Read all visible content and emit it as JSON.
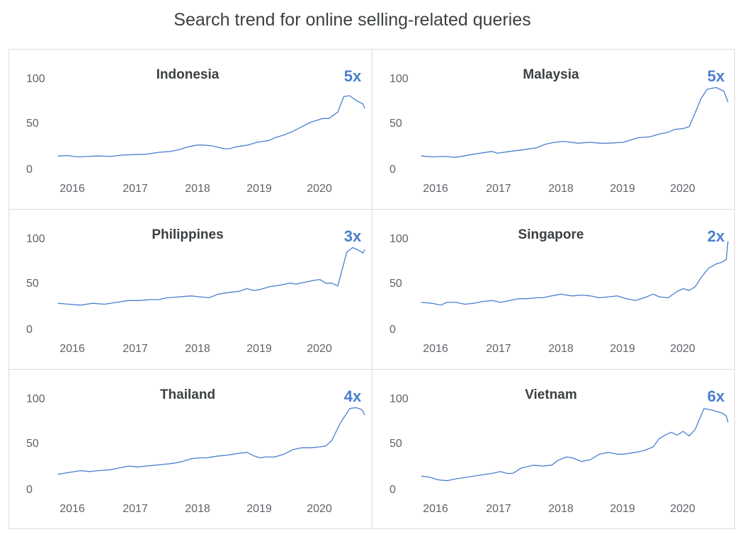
{
  "title": "Search trend for online selling-related queries",
  "colors": {
    "line": "#4a7fcf",
    "multiplier": "#4a7fcf",
    "grid_border": "#dadce0"
  },
  "chart_data": [
    {
      "type": "line",
      "title": "Indonesia",
      "multiplier": "5x",
      "x_ticks": [
        "2016",
        "2017",
        "2018",
        "2019",
        "2020"
      ],
      "y_ticks": [
        "100",
        "50",
        "0"
      ],
      "ylim": [
        0,
        100
      ],
      "xlim": [
        2015.6,
        2020.75
      ],
      "grid": false,
      "series": [
        {
          "x": [
            2015.62,
            2015.78,
            2015.95,
            2016.1,
            2016.3,
            2016.5,
            2016.7,
            2016.9,
            2017.1,
            2017.3,
            2017.5,
            2017.65,
            2017.8,
            2017.95,
            2018.05,
            2018.2,
            2018.4,
            2018.5,
            2018.6,
            2018.8,
            2018.95,
            2019.05,
            2019.15,
            2019.25,
            2019.4,
            2019.55,
            2019.7,
            2019.85,
            2019.95,
            2020.05,
            2020.15,
            2020.3,
            2020.4,
            2020.5,
            2020.6,
            2020.72,
            2020.75
          ],
          "values": [
            13,
            13.5,
            12,
            12.5,
            13,
            12.5,
            14,
            14.5,
            15,
            17,
            18,
            20,
            23,
            25,
            25,
            24,
            21,
            21,
            23,
            25,
            28,
            29,
            30,
            33,
            36,
            40,
            45,
            50,
            52,
            54,
            54,
            61,
            78,
            79,
            74,
            70,
            65
          ]
        }
      ]
    },
    {
      "type": "line",
      "title": "Malaysia",
      "multiplier": "5x",
      "x_ticks": [
        "2016",
        "2017",
        "2018",
        "2019",
        "2020"
      ],
      "y_ticks": [
        "100",
        "50",
        "0"
      ],
      "ylim": [
        0,
        100
      ],
      "xlim": [
        2015.6,
        2020.75
      ],
      "grid": false,
      "series": [
        {
          "x": [
            2015.62,
            2015.8,
            2016.0,
            2016.2,
            2016.5,
            2016.8,
            2016.9,
            2017.1,
            2017.35,
            2017.55,
            2017.7,
            2017.85,
            2018.0,
            2018.25,
            2018.45,
            2018.6,
            2018.75,
            2019.0,
            2019.1,
            2019.25,
            2019.45,
            2019.6,
            2019.75,
            2019.85,
            2020.0,
            2020.1,
            2020.2,
            2020.3,
            2020.4,
            2020.55,
            2020.68,
            2020.75
          ],
          "values": [
            13,
            12,
            12.5,
            11.5,
            15,
            18,
            16,
            18,
            20,
            22,
            26,
            28,
            29,
            27,
            28,
            27,
            27,
            28,
            30,
            33,
            34,
            37,
            39,
            42,
            43,
            45,
            60,
            76,
            86,
            88,
            84,
            72
          ]
        }
      ]
    },
    {
      "type": "line",
      "title": "Philippines",
      "multiplier": "3x",
      "x_ticks": [
        "2016",
        "2017",
        "2018",
        "2019",
        "2020"
      ],
      "y_ticks": [
        "100",
        "50",
        "0"
      ],
      "ylim": [
        0,
        100
      ],
      "xlim": [
        2015.6,
        2020.75
      ],
      "grid": false,
      "series": [
        {
          "x": [
            2015.62,
            2015.8,
            2016.0,
            2016.2,
            2016.4,
            2016.6,
            2016.8,
            2017.0,
            2017.15,
            2017.3,
            2017.45,
            2017.65,
            2017.85,
            2018.0,
            2018.15,
            2018.3,
            2018.5,
            2018.65,
            2018.78,
            2018.9,
            2019.0,
            2019.1,
            2019.15,
            2019.25,
            2019.35,
            2019.5,
            2019.6,
            2019.75,
            2019.9,
            2020.0,
            2020.1,
            2020.2,
            2020.3,
            2020.45,
            2020.55,
            2020.65,
            2020.72,
            2020.75
          ],
          "values": [
            27,
            26,
            25,
            27,
            26,
            28,
            30,
            30,
            31,
            31,
            33,
            34,
            35,
            34,
            33,
            37,
            39,
            40,
            43,
            41,
            42,
            44,
            45,
            46,
            47,
            49,
            48,
            50,
            52,
            53,
            49,
            49,
            46,
            83,
            88,
            85,
            82,
            86
          ]
        }
      ]
    },
    {
      "type": "line",
      "title": "Singapore",
      "multiplier": "2x",
      "x_ticks": [
        "2016",
        "2017",
        "2018",
        "2019",
        "2020"
      ],
      "y_ticks": [
        "100",
        "50",
        "0"
      ],
      "ylim": [
        0,
        100
      ],
      "xlim": [
        2015.6,
        2020.75
      ],
      "grid": false,
      "series": [
        {
          "x": [
            2015.62,
            2015.8,
            2015.95,
            2016.05,
            2016.2,
            2016.35,
            2016.5,
            2016.65,
            2016.8,
            2016.95,
            2017.1,
            2017.25,
            2017.4,
            2017.55,
            2017.65,
            2017.8,
            2017.95,
            2018.05,
            2018.15,
            2018.3,
            2018.45,
            2018.6,
            2018.75,
            2018.9,
            2019.05,
            2019.2,
            2019.35,
            2019.5,
            2019.6,
            2019.75,
            2019.9,
            2020.0,
            2020.1,
            2020.2,
            2020.3,
            2020.42,
            2020.55,
            2020.65,
            2020.72,
            2020.75
          ],
          "values": [
            28,
            27,
            25,
            28,
            28,
            26,
            27,
            29,
            30,
            28,
            30,
            32,
            32,
            33,
            33,
            35,
            37,
            36,
            35,
            36,
            35,
            33,
            34,
            35,
            32,
            30,
            33,
            37,
            34,
            33,
            40,
            43,
            41,
            45,
            55,
            65,
            70,
            72,
            75,
            95
          ]
        }
      ]
    },
    {
      "type": "line",
      "title": "Thailand",
      "multiplier": "4x",
      "x_ticks": [
        "2016",
        "2017",
        "2018",
        "2019",
        "2020"
      ],
      "y_ticks": [
        "100",
        "50",
        "0"
      ],
      "ylim": [
        0,
        100
      ],
      "xlim": [
        2015.6,
        2020.75
      ],
      "grid": false,
      "series": [
        {
          "x": [
            2015.62,
            2015.8,
            2016.0,
            2016.15,
            2016.3,
            2016.5,
            2016.65,
            2016.8,
            2016.95,
            2017.1,
            2017.25,
            2017.4,
            2017.55,
            2017.7,
            2017.85,
            2018.0,
            2018.1,
            2018.3,
            2018.45,
            2018.55,
            2018.65,
            2018.78,
            2018.9,
            2019.0,
            2019.1,
            2019.25,
            2019.4,
            2019.55,
            2019.7,
            2019.85,
            2020.0,
            2020.1,
            2020.2,
            2020.35,
            2020.5,
            2020.6,
            2020.7,
            2020.75
          ],
          "values": [
            15,
            17,
            19,
            18,
            19,
            20,
            22,
            24,
            23,
            24,
            25,
            26,
            27,
            29,
            32,
            33,
            33,
            35,
            36,
            37,
            38,
            39,
            35,
            33,
            34,
            34,
            37,
            42,
            44,
            44,
            45,
            46,
            52,
            72,
            87,
            88,
            86,
            80
          ]
        }
      ]
    },
    {
      "type": "line",
      "title": "Vietnam",
      "multiplier": "6x",
      "x_ticks": [
        "2016",
        "2017",
        "2018",
        "2019",
        "2020"
      ],
      "y_ticks": [
        "100",
        "50",
        "0"
      ],
      "ylim": [
        0,
        100
      ],
      "xlim": [
        2015.6,
        2020.75
      ],
      "grid": false,
      "series": [
        {
          "x": [
            2015.62,
            2015.75,
            2015.9,
            2016.05,
            2016.2,
            2016.4,
            2016.6,
            2016.8,
            2016.95,
            2017.05,
            2017.15,
            2017.3,
            2017.5,
            2017.65,
            2017.8,
            2017.9,
            2018.05,
            2018.15,
            2018.3,
            2018.45,
            2018.6,
            2018.75,
            2018.9,
            2019.0,
            2019.1,
            2019.2,
            2019.35,
            2019.5,
            2019.6,
            2019.7,
            2019.8,
            2019.9,
            2020.0,
            2020.1,
            2020.2,
            2020.35,
            2020.5,
            2020.65,
            2020.72,
            2020.75
          ],
          "values": [
            13,
            12,
            9,
            8,
            10,
            12,
            14,
            16,
            18,
            16,
            16,
            22,
            25,
            24,
            25,
            30,
            34,
            33,
            29,
            31,
            37,
            39,
            37,
            37,
            38,
            39,
            41,
            45,
            54,
            58,
            61,
            58,
            62,
            57,
            64,
            87,
            85,
            82,
            79,
            72
          ]
        }
      ]
    }
  ]
}
